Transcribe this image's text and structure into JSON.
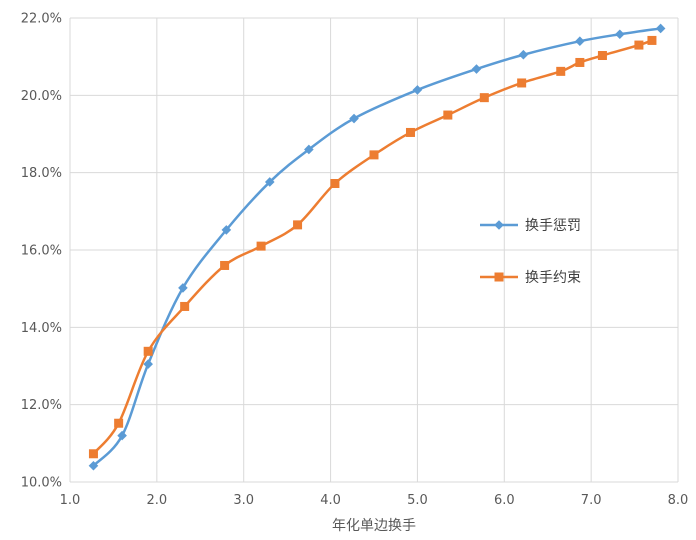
{
  "chart_data": {
    "type": "line",
    "title": "",
    "xlabel": "年化单边换手",
    "ylabel": "",
    "xlim": [
      1.0,
      8.0
    ],
    "ylim": [
      10.0,
      22.0
    ],
    "x_ticks": [
      1.0,
      2.0,
      3.0,
      4.0,
      5.0,
      6.0,
      7.0,
      8.0
    ],
    "x_tick_labels": [
      "1.0",
      "2.0",
      "3.0",
      "4.0",
      "5.0",
      "6.0",
      "7.0",
      "8.0"
    ],
    "y_ticks": [
      10,
      12,
      14,
      16,
      18,
      20,
      22
    ],
    "y_tick_labels": [
      "10.0%",
      "12.0%",
      "14.0%",
      "16.0%",
      "18.0%",
      "20.0%",
      "22.0%"
    ],
    "grid": {
      "horizontal": true,
      "vertical": true
    },
    "legend_position": "right-middle",
    "series": [
      {
        "name": "换手惩罚",
        "color": "#5B9BD5",
        "marker": "diamond",
        "x": [
          1.27,
          1.6,
          1.9,
          2.3,
          2.8,
          3.3,
          3.75,
          4.27,
          5.0,
          5.68,
          6.22,
          6.87,
          7.33,
          7.8
        ],
        "y": [
          10.42,
          11.2,
          13.05,
          15.02,
          16.52,
          17.76,
          18.6,
          19.4,
          20.14,
          20.68,
          21.05,
          21.4,
          21.58,
          21.73
        ]
      },
      {
        "name": "换手约束",
        "color": "#ED7D31",
        "marker": "square",
        "x": [
          1.27,
          1.56,
          1.9,
          2.32,
          2.78,
          3.2,
          3.62,
          4.05,
          4.5,
          4.92,
          5.35,
          5.77,
          6.2,
          6.65,
          6.87,
          7.13,
          7.55,
          7.7
        ],
        "y": [
          10.73,
          11.52,
          13.38,
          14.54,
          15.6,
          16.1,
          16.65,
          17.72,
          18.46,
          19.04,
          19.49,
          19.94,
          20.32,
          20.62,
          20.85,
          21.03,
          21.3,
          21.42
        ]
      }
    ]
  }
}
